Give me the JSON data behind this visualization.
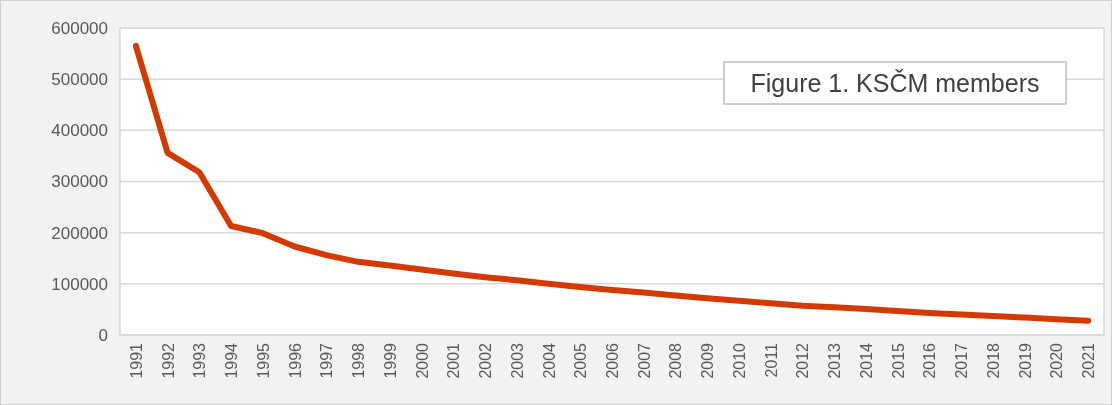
{
  "chart_data": {
    "type": "line",
    "annotations": [
      "Figure 1. KSČM members"
    ],
    "categories": [
      "1991",
      "1992",
      "1993",
      "1994",
      "1995",
      "1996",
      "1997",
      "1998",
      "1999",
      "2000",
      "2001",
      "2002",
      "2003",
      "2004",
      "2005",
      "2006",
      "2007",
      "2008",
      "2009",
      "2010",
      "2011",
      "2012",
      "2013",
      "2014",
      "2015",
      "2016",
      "2017",
      "2018",
      "2019",
      "2020",
      "2021"
    ],
    "series": [
      {
        "color": "#d43a00",
        "values": [
          565000,
          356000,
          318000,
          213000,
          199000,
          173000,
          156000,
          143000,
          136000,
          128000,
          120000,
          113000,
          107000,
          100000,
          94000,
          88000,
          83000,
          77000,
          72000,
          67000,
          62000,
          57000,
          54000,
          51000,
          47000,
          43000,
          40000,
          37000,
          34000,
          31000,
          28000
        ]
      }
    ],
    "ylim": [
      0,
      600000
    ],
    "yticks": [
      0,
      100000,
      200000,
      300000,
      400000,
      500000,
      600000
    ],
    "grid": "y",
    "marker": "none",
    "line_style": "solid"
  }
}
